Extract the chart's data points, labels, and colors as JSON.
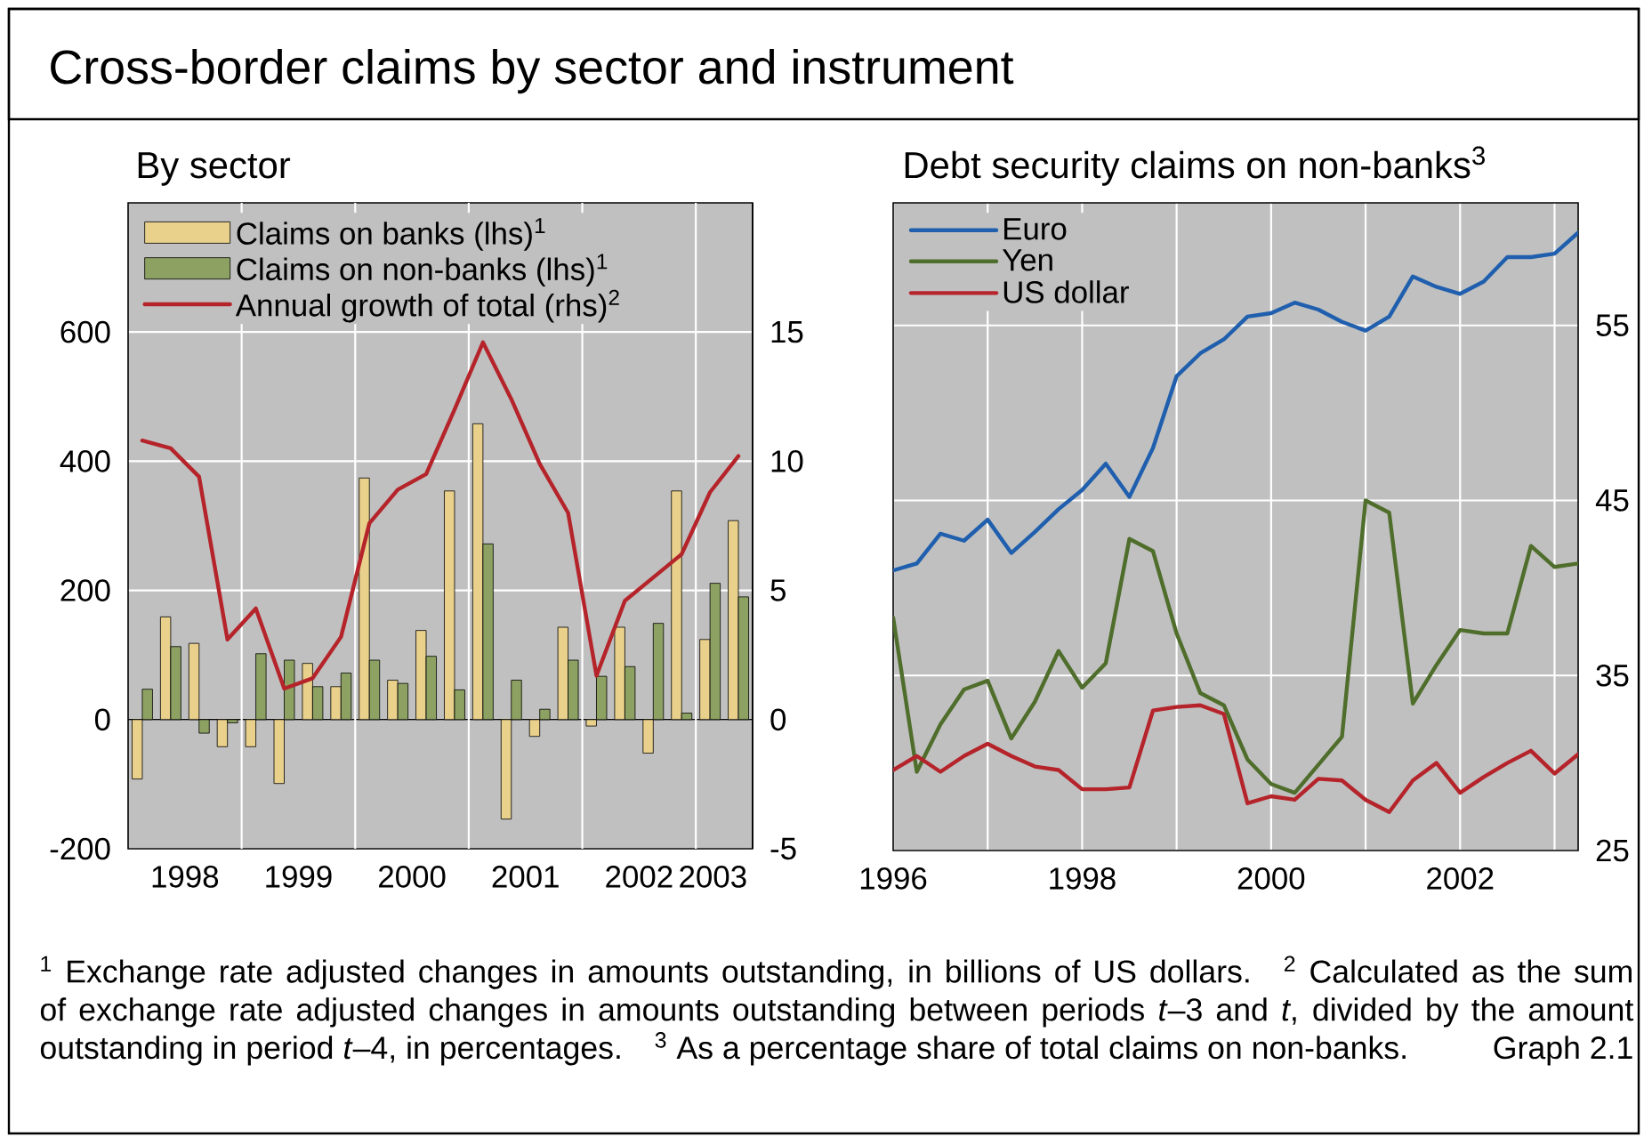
{
  "chart_data": [
    {
      "type": "bar",
      "title": "Cross-border claims by sector and instrument",
      "subtitle": "By sector",
      "annotations": [
        "$^{1}$ Exchange rate adjusted changes in amounts outstanding, in billions of US dollars.",
        "$^{2}$ Calculated as the sum of exchange rate adjusted changes in amounts outstanding between periods *t*–3 and *t*, divided by the amount outstanding in period *t*–4, in percentages.",
        "$^{3}$ As a percentage share of total claims on non-banks.",
        "Graph 2.1"
      ],
      "x": [
        1998.125,
        1998.375,
        1998.625,
        1998.875,
        1999.125,
        1999.375,
        1999.625,
        1999.875,
        2000.125,
        2000.375,
        2000.625,
        2000.875,
        2001.125,
        2001.375,
        2001.625,
        2001.875,
        2002.125,
        2002.375,
        2002.625,
        2002.875,
        2003.125,
        2003.375
      ],
      "xlim": [
        1998,
        2003.5
      ],
      "xticks": [
        {
          "value": 1998.5,
          "label": "1998"
        },
        {
          "value": 1999.5,
          "label": "1999"
        },
        {
          "value": 2000.5,
          "label": "2000"
        },
        {
          "value": 2001.5,
          "label": "2001"
        },
        {
          "value": 2002.5,
          "label": "2002"
        },
        {
          "value": 2003.15,
          "label": "2003"
        }
      ],
      "ylim": [
        -200,
        800
      ],
      "yticks": [
        -200,
        0,
        200,
        400,
        600
      ],
      "y2lim": [
        -5,
        20
      ],
      "y2ticks": [
        -5,
        0,
        5,
        10,
        15
      ],
      "grid": "y",
      "ref_lines": [
        {
          "axis": "x",
          "value": 1999,
          "color": "#ffffff"
        },
        {
          "axis": "x",
          "value": 2000,
          "color": "#ffffff"
        },
        {
          "axis": "x",
          "value": 2001,
          "color": "#ffffff"
        },
        {
          "axis": "x",
          "value": 2002,
          "color": "#ffffff"
        },
        {
          "axis": "x",
          "value": 2003,
          "color": "#ffffff"
        }
      ],
      "legend": "top left",
      "series": [
        {
          "name": "Claims on banks (lhs)$^{1}$",
          "color": "#e9d18c",
          "values": [
            -92,
            159,
            118,
            -42,
            -42,
            -99,
            87,
            51,
            374,
            61,
            138,
            354,
            458,
            -154,
            -26,
            143,
            -10,
            143,
            -52,
            354,
            124,
            308
          ]
        },
        {
          "name": "Claims on non-banks (lhs)$^{1}$",
          "color": "#8da262",
          "values": [
            47,
            113,
            -21,
            -5,
            102,
            92,
            51,
            72,
            92,
            56,
            98,
            46,
            272,
            61,
            16,
            92,
            67,
            82,
            149,
            10,
            211,
            190
          ]
        },
        {
          "name": "Annual growth of total (rhs)$^{2}$",
          "type": "line",
          "axis": "y2",
          "color": "#b5242a",
          "values": [
            10.8,
            10.5,
            9.4,
            3.1,
            4.3,
            1.2,
            1.6,
            3.2,
            7.6,
            8.9,
            9.5,
            12.0,
            14.6,
            12.4,
            9.9,
            8.0,
            1.7,
            4.6,
            5.5,
            6.4,
            8.8,
            10.2
          ]
        }
      ]
    },
    {
      "type": "line",
      "subtitle": "Debt security claims on non-banks$^{3}$",
      "x": [
        1996,
        1996.25,
        1996.5,
        1996.75,
        1997,
        1997.25,
        1997.5,
        1997.75,
        1998,
        1998.25,
        1998.5,
        1998.75,
        1999,
        1999.25,
        1999.5,
        1999.75,
        2000,
        2000.25,
        2000.5,
        2000.75,
        2001,
        2001.25,
        2001.5,
        2001.75,
        2002,
        2002.25,
        2002.5,
        2002.75,
        2003,
        2003.25
      ],
      "xlim": [
        1996,
        2003.25
      ],
      "xticks": [
        1996,
        {
          "value": 1997,
          "label": null
        },
        1998,
        {
          "value": 1999,
          "label": null
        },
        2000,
        {
          "value": 2001,
          "label": null
        },
        2002,
        {
          "value": 2003,
          "label": null
        }
      ],
      "ylim": [
        25,
        62
      ],
      "yticks": [
        25,
        35,
        45,
        55
      ],
      "grid": true,
      "legend": "top left",
      "series": [
        {
          "name": "Euro",
          "color": "#1f5fae",
          "values": [
            41.0,
            41.4,
            43.1,
            42.7,
            43.9,
            42.0,
            43.2,
            44.5,
            45.6,
            47.1,
            45.2,
            48.0,
            52.1,
            53.4,
            54.2,
            55.5,
            55.7,
            56.3,
            55.9,
            55.2,
            54.7,
            55.5,
            57.8,
            57.2,
            56.8,
            57.5,
            58.9,
            58.9,
            59.1,
            60.3
          ]
        },
        {
          "name": "Yen",
          "color": "#4f6d2b",
          "values": [
            38.3,
            29.5,
            32.2,
            34.2,
            34.7,
            31.4,
            33.5,
            36.4,
            34.3,
            35.7,
            42.8,
            42.1,
            37.4,
            34.0,
            33.3,
            30.2,
            28.8,
            28.3,
            29.9,
            31.5,
            45.0,
            44.3,
            33.4,
            35.6,
            37.6,
            37.4,
            37.4,
            42.4,
            41.2,
            41.4
          ]
        },
        {
          "name": "US dollar",
          "color": "#b5242a",
          "values": [
            29.6,
            30.4,
            29.5,
            30.4,
            31.1,
            30.4,
            29.8,
            29.6,
            28.5,
            28.5,
            28.6,
            33.0,
            33.2,
            33.3,
            32.8,
            27.7,
            28.1,
            27.9,
            29.1,
            29.0,
            27.9,
            27.2,
            29.0,
            30.0,
            28.3,
            29.2,
            30.0,
            30.7,
            29.4,
            30.5
          ]
        }
      ]
    }
  ]
}
